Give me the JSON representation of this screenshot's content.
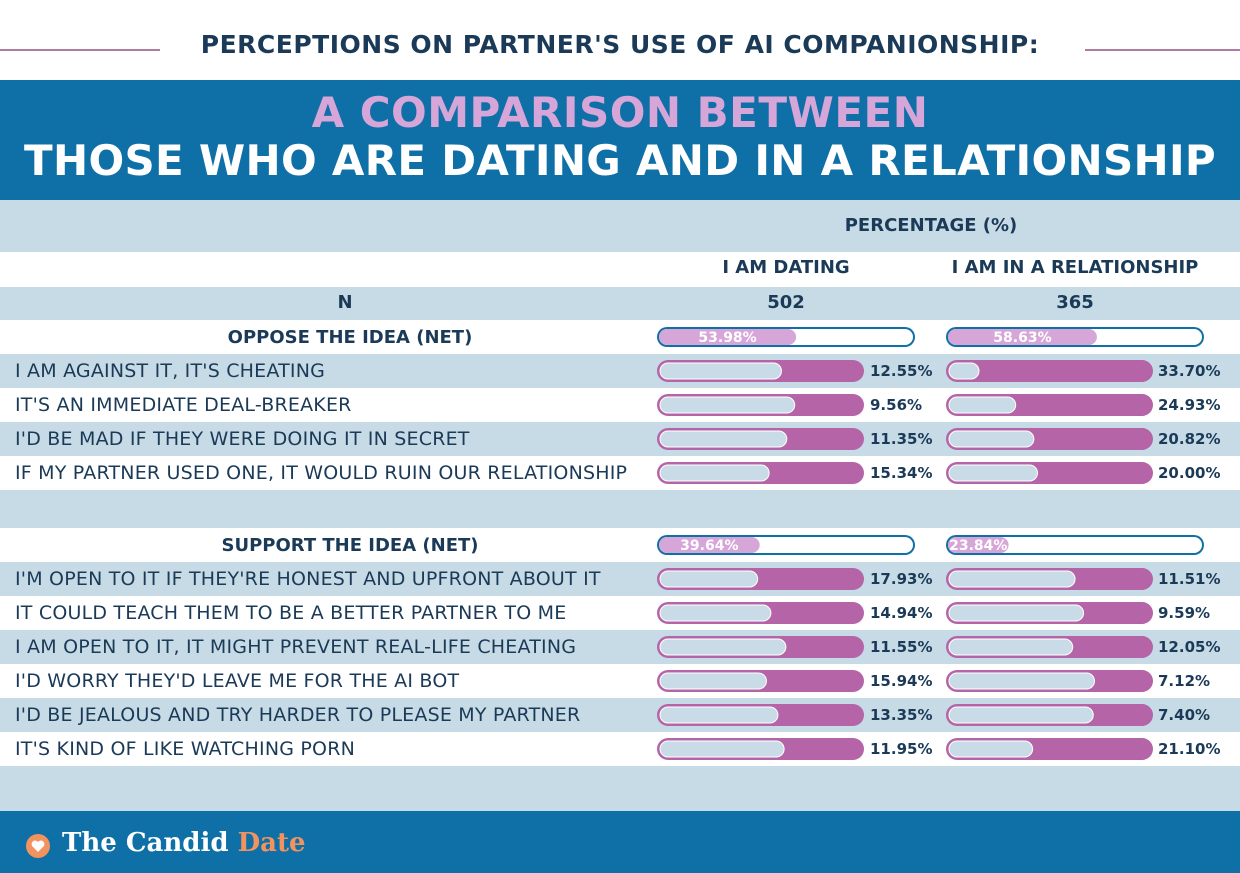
{
  "header": {
    "title": "PERCEPTIONS ON PARTNER'S USE OF AI COMPANIONSHIP:",
    "subtitle_line1": "A COMPARISON BETWEEN",
    "subtitle_line2": "THOSE WHO ARE DATING AND IN A RELATIONSHIP"
  },
  "table": {
    "percentage_header": "PERCENTAGE (%)",
    "col_dating": "I AM DATING",
    "col_relationship": "I AM IN A RELATIONSHIP",
    "n_label": "N",
    "n_dating": "502",
    "n_relationship": "365"
  },
  "colors": {
    "navy": "#1b3a57",
    "blue": "#0f70a8",
    "pink": "#b565a7",
    "light_pink": "#d7a6d8",
    "light_blue": "#c9dbe6",
    "band": "#c7dbe6"
  },
  "chart_data": {
    "type": "table",
    "series": [
      {
        "name": "I AM DATING"
      },
      {
        "name": "I AM IN A RELATIONSHIP"
      }
    ],
    "groups": [
      {
        "net_label": "OPPOSE THE IDEA (NET)",
        "net_dating": 53.98,
        "net_dating_text": "53.98%",
        "net_relationship": 58.63,
        "net_relationship_text": "58.63%",
        "rows": [
          {
            "label": "I AM AGAINST IT, IT'S CHEATING",
            "dating": 12.55,
            "dating_text": "12.55%",
            "relationship": 33.7,
            "relationship_text": "33.70%"
          },
          {
            "label": "IT'S AN IMMEDIATE DEAL-BREAKER",
            "dating": 9.56,
            "dating_text": "9.56%",
            "relationship": 24.93,
            "relationship_text": "24.93%"
          },
          {
            "label": "I'D BE MAD IF THEY WERE DOING IT IN SECRET",
            "dating": 11.35,
            "dating_text": "11.35%",
            "relationship": 20.82,
            "relationship_text": "20.82%"
          },
          {
            "label": "IF MY PARTNER USED ONE, IT WOULD RUIN OUR RELATIONSHIP",
            "dating": 15.34,
            "dating_text": "15.34%",
            "relationship": 20.0,
            "relationship_text": "20.00%"
          }
        ]
      },
      {
        "net_label": "SUPPORT THE IDEA (NET)",
        "net_dating": 39.64,
        "net_dating_text": "39.64%",
        "net_relationship": 23.84,
        "net_relationship_text": "23.84%",
        "rows": [
          {
            "label": "I'M OPEN TO IT IF THEY'RE HONEST AND UPFRONT ABOUT IT",
            "dating": 17.93,
            "dating_text": "17.93%",
            "relationship": 11.51,
            "relationship_text": "11.51%"
          },
          {
            "label": "IT COULD TEACH THEM TO BE A BETTER PARTNER TO ME",
            "dating": 14.94,
            "dating_text": "14.94%",
            "relationship": 9.59,
            "relationship_text": "9.59%"
          },
          {
            "label": "I AM OPEN TO IT, IT MIGHT PREVENT REAL-LIFE CHEATING",
            "dating": 11.55,
            "dating_text": "11.55%",
            "relationship": 12.05,
            "relationship_text": "12.05%"
          },
          {
            "label": "I'D WORRY THEY'D LEAVE ME FOR THE AI BOT",
            "dating": 15.94,
            "dating_text": "15.94%",
            "relationship": 7.12,
            "relationship_text": "7.12%"
          },
          {
            "label": "I'D BE JEALOUS AND TRY HARDER TO PLEASE MY PARTNER",
            "dating": 13.35,
            "dating_text": "13.35%",
            "relationship": 7.4,
            "relationship_text": "7.40%"
          },
          {
            "label": "IT'S KIND OF LIKE WATCHING PORN",
            "dating": 11.95,
            "dating_text": "11.95%",
            "relationship": 21.1,
            "relationship_text": "21.10%"
          }
        ]
      }
    ]
  },
  "footer": {
    "logo_icon": "heart-icon",
    "brand_part1": "The Candid ",
    "brand_part2": "Date"
  }
}
